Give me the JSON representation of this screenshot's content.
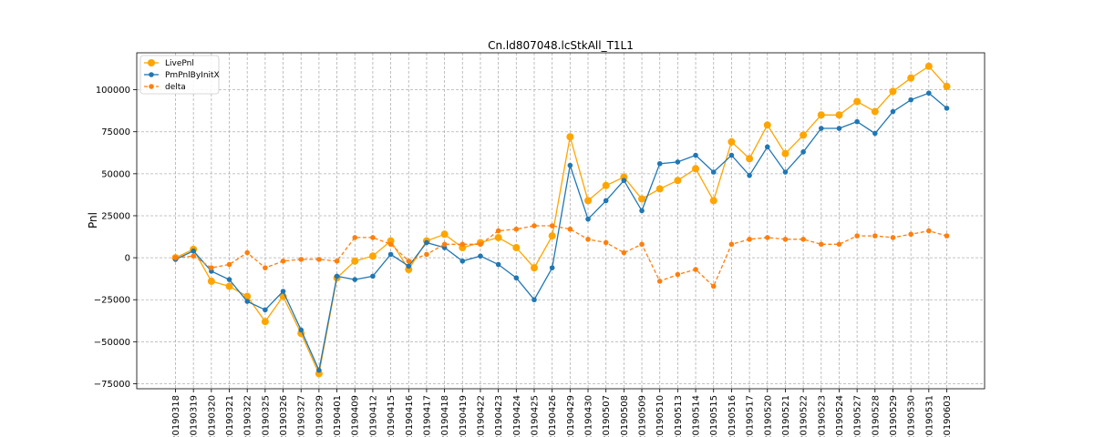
{
  "chart_data": {
    "type": "line",
    "title": "Cn.ld807048.lcStkAll_T1L1",
    "xlabel": "",
    "ylabel": "Pnl",
    "ylim": [
      -78000,
      122000
    ],
    "yticks": [
      -75000,
      -50000,
      -25000,
      0,
      25000,
      50000,
      75000,
      100000
    ],
    "yticklabels": [
      "−75000",
      "−50000",
      "−25000",
      "0",
      "25000",
      "50000",
      "75000",
      "100000"
    ],
    "grid": true,
    "legend_position": "upper-left",
    "categories": [
      "20190318",
      "20190319",
      "20190320",
      "20190321",
      "20190322",
      "20190325",
      "20190326",
      "20190327",
      "20190329",
      "20190401",
      "20190409",
      "20190412",
      "20190415",
      "20190416",
      "20190417",
      "20190418",
      "20190419",
      "20190422",
      "20190423",
      "20190424",
      "20190425",
      "20190426",
      "20190429",
      "20190430",
      "20190507",
      "20190508",
      "20190509",
      "20190510",
      "20190513",
      "20190514",
      "20190515",
      "20190516",
      "20190517",
      "20190520",
      "20190521",
      "20190522",
      "20190523",
      "20190524",
      "20190527",
      "20190528",
      "20190529",
      "20190530",
      "20190531",
      "20190603"
    ],
    "series": [
      {
        "name": "LivePnl",
        "color": "#ffa500",
        "style": "solid",
        "marker": "large-circle",
        "values": [
          0,
          5000,
          -14000,
          -17000,
          -23000,
          -38000,
          -23000,
          -45000,
          -69000,
          -12000,
          -2000,
          1000,
          10000,
          -7000,
          10000,
          14000,
          6000,
          9000,
          12000,
          6000,
          -6000,
          13000,
          72000,
          34000,
          43000,
          48000,
          35000,
          41000,
          46000,
          53000,
          34000,
          69000,
          59000,
          79000,
          62000,
          73000,
          85000,
          85000,
          93000,
          87000,
          99000,
          107000,
          114000,
          102000
        ]
      },
      {
        "name": "PmPnlByInitX",
        "color": "#1f77b4",
        "style": "solid",
        "marker": "small-circle",
        "values": [
          -1000,
          4000,
          -8000,
          -13000,
          -26000,
          -31000,
          -20000,
          -43000,
          -67000,
          -11000,
          -13000,
          -11000,
          2000,
          -5000,
          9000,
          6000,
          -2000,
          1000,
          -4000,
          -12000,
          -25000,
          -6000,
          55000,
          23000,
          34000,
          46000,
          28000,
          56000,
          57000,
          61000,
          51000,
          61000,
          49000,
          66000,
          51000,
          63000,
          77000,
          77000,
          81000,
          74000,
          87000,
          94000,
          98000,
          89000
        ]
      },
      {
        "name": "delta",
        "color": "#ff7f0e",
        "style": "dashed",
        "marker": "small-circle",
        "values": [
          0,
          1000,
          -6000,
          -4000,
          3000,
          -6000,
          -2000,
          -1000,
          -1000,
          -2000,
          12000,
          12000,
          8000,
          -2000,
          2000,
          8000,
          8000,
          8000,
          16000,
          17000,
          19000,
          19000,
          17000,
          11000,
          9000,
          3000,
          8000,
          -14000,
          -10000,
          -7000,
          -17000,
          8000,
          11000,
          12000,
          11000,
          11000,
          8000,
          8000,
          13000,
          13000,
          12000,
          14000,
          16000,
          13000
        ]
      }
    ]
  }
}
